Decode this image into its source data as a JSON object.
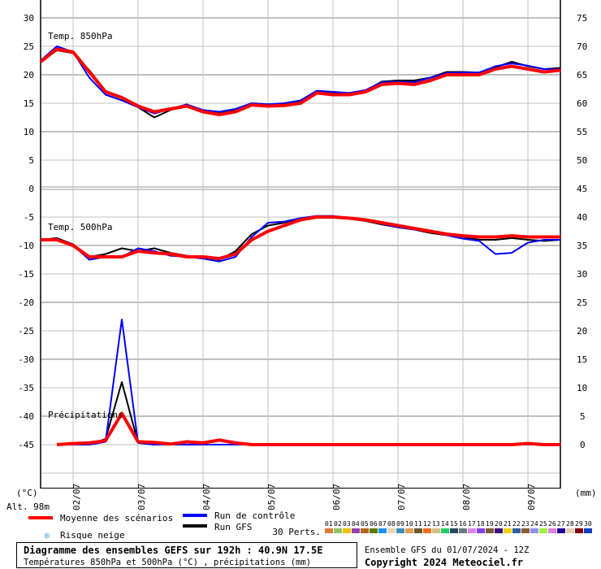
{
  "chart_data": {
    "type": "line",
    "title": "Diagramme des ensembles GEFS sur 192h : 40.9N 17.5E",
    "subtitle": "Températures 850hPa et 500hPa (°C) , précipitations (mm)",
    "run_info": "Ensemble GFS du 01/07/2024 - 12Z",
    "copyright": "Copyright 2024 Meteociel.fr",
    "altitude": "Alt. 98m",
    "left_unit": "(°C)",
    "right_unit": "(mm)",
    "x_step_hours": 6,
    "x_tick_labels": [
      "02/07",
      "03/07",
      "04/07",
      "05/07",
      "06/07",
      "07/07",
      "08/07",
      "09/07"
    ],
    "panels": {
      "t850": {
        "label": "Temp. 850hPa",
        "ylim": [
          0,
          30
        ],
        "left_ticks": [
          "30",
          "25",
          "20",
          "15",
          "10",
          "5",
          "0"
        ],
        "right_ticks": [
          "75",
          "70",
          "65",
          "60",
          "55",
          "50"
        ],
        "mean": [
          22.3,
          24.5,
          24,
          20.5,
          17,
          16,
          14.5,
          13.5,
          14,
          14.5,
          13.5,
          13,
          13.5,
          14.7,
          14.5,
          14.6,
          15,
          16.8,
          16.5,
          16.5,
          17,
          18.3,
          18.5,
          18.3,
          19,
          20,
          20,
          20,
          21,
          21.5,
          21,
          20.5,
          20.8
        ],
        "control": [
          22.5,
          25,
          24,
          19.5,
          16.5,
          15.5,
          14.3,
          13.2,
          14,
          14.8,
          13.8,
          13.5,
          14,
          15,
          14.8,
          15,
          15.5,
          17.2,
          17,
          16.8,
          17.3,
          18.7,
          18.8,
          18.7,
          19.5,
          20.3,
          20.4,
          20.4,
          21.5,
          22,
          21.6,
          21,
          21
        ],
        "gfs": [
          22.3,
          24.3,
          23.8,
          20.8,
          17.2,
          16,
          14.3,
          12.5,
          13.8,
          14.7,
          13.6,
          13.2,
          13.8,
          15,
          14.8,
          14.9,
          15.3,
          17,
          16.7,
          16.8,
          17.2,
          18.8,
          19,
          19,
          19.5,
          20.5,
          20.5,
          20.4,
          21.3,
          22.3,
          21.5,
          21,
          21.2
        ]
      },
      "t500": {
        "label": "Temp. 500hPa",
        "ylim": [
          -45,
          0
        ],
        "left_ticks": [
          "-5",
          "-10",
          "-15",
          "-20",
          "-25",
          "-30",
          "-35",
          "-40",
          "-45"
        ],
        "right_ticks": [
          "45",
          "40",
          "35",
          "30",
          "25",
          "20",
          "15",
          "10",
          "5",
          "0"
        ],
        "mean": [
          -9,
          -9,
          -10,
          -12,
          -12,
          -12,
          -11,
          -11.3,
          -11.5,
          -12,
          -12,
          -12.3,
          -11.5,
          -9,
          -7.5,
          -6.5,
          -5.5,
          -5,
          -5,
          -5.2,
          -5.5,
          -6,
          -6.5,
          -7,
          -7.5,
          -8,
          -8.3,
          -8.5,
          -8.5,
          -8.3,
          -8.5,
          -8.5,
          -8.5
        ],
        "control": [
          -9,
          -8.8,
          -10,
          -12.5,
          -12,
          -12,
          -10.5,
          -11,
          -11.8,
          -12,
          -12.3,
          -12.8,
          -12,
          -8.5,
          -6,
          -5.8,
          -5.2,
          -4.8,
          -4.8,
          -5.2,
          -5.6,
          -6.2,
          -6.8,
          -7.2,
          -7.6,
          -8.2,
          -8.8,
          -9.2,
          -11.5,
          -11.3,
          -9.5,
          -9,
          -9
        ],
        "gfs": [
          -9,
          -8.7,
          -9.8,
          -12,
          -11.5,
          -10.5,
          -11,
          -10.5,
          -11.3,
          -11.8,
          -12,
          -12.5,
          -11,
          -8,
          -6.5,
          -6,
          -5.2,
          -5,
          -5,
          -5.3,
          -5.7,
          -6.3,
          -6.8,
          -7.2,
          -7.8,
          -8.2,
          -8.5,
          -9,
          -9,
          -8.7,
          -9,
          -9.2,
          -9
        ]
      },
      "precip": {
        "label": "Précipitations",
        "ylim": [
          0,
          45
        ],
        "mean": [
          null,
          0,
          0.2,
          0.3,
          0.7,
          5.5,
          0.5,
          0.4,
          0.1,
          0.5,
          0.3,
          0.8,
          0.3,
          0,
          0,
          0,
          0,
          0,
          0,
          0,
          0,
          0,
          0,
          0,
          0,
          0,
          0,
          0,
          0,
          0,
          0.2,
          0,
          0
        ],
        "control": [
          null,
          0,
          0,
          0,
          0.5,
          22,
          0.3,
          0,
          0,
          0,
          0,
          0,
          0,
          0,
          0,
          0,
          0,
          0,
          0,
          0,
          0,
          0,
          0,
          0,
          0,
          0,
          0,
          0,
          0,
          0,
          0,
          0,
          0
        ],
        "gfs": [
          null,
          0,
          0,
          0,
          1,
          11,
          0.3,
          0,
          0,
          0,
          0,
          0,
          0,
          0,
          0,
          0,
          0,
          0,
          0,
          0,
          0,
          0,
          0,
          0,
          0,
          0,
          0,
          0,
          0,
          0,
          0,
          0,
          0
        ]
      }
    },
    "legend": {
      "mean": "Moyenne des scénarios",
      "control": "Run de contrôle",
      "gfs": "Run GFS",
      "snow": "Risque neige",
      "perts": "30 Perts.",
      "pert_labels": [
        "01",
        "02",
        "03",
        "04",
        "05",
        "06",
        "07",
        "08",
        "09",
        "10",
        "11",
        "12",
        "13",
        "14",
        "15",
        "16",
        "17",
        "18",
        "19",
        "20",
        "21",
        "22",
        "23",
        "24",
        "25",
        "26",
        "27",
        "28",
        "29",
        "30"
      ],
      "pert_colors": [
        "#e07b39",
        "#8fc46a",
        "#f0c000",
        "#8e44ad",
        "#b5651d",
        "#5a7d00",
        "#1e90ff",
        "#e8d5b0",
        "#3a8fc0",
        "#e0a050",
        "#6b5a2a",
        "#f07020",
        "#d4c080",
        "#20d060",
        "#2a4a60",
        "#6a7a80",
        "#e080f0",
        "#8040f0",
        "#7a5a30",
        "#3a1080",
        "#f0d000",
        "#3060a0",
        "#8a6030",
        "#9090f0",
        "#a0f040",
        "#e080e0",
        "#2000a0",
        "#e0d0b0",
        "#800010",
        "#1040c0"
      ]
    },
    "colors": {
      "mean": "#ff0000",
      "control": "#0000ff",
      "gfs": "#000000",
      "grid": "#c0c0c0"
    }
  }
}
